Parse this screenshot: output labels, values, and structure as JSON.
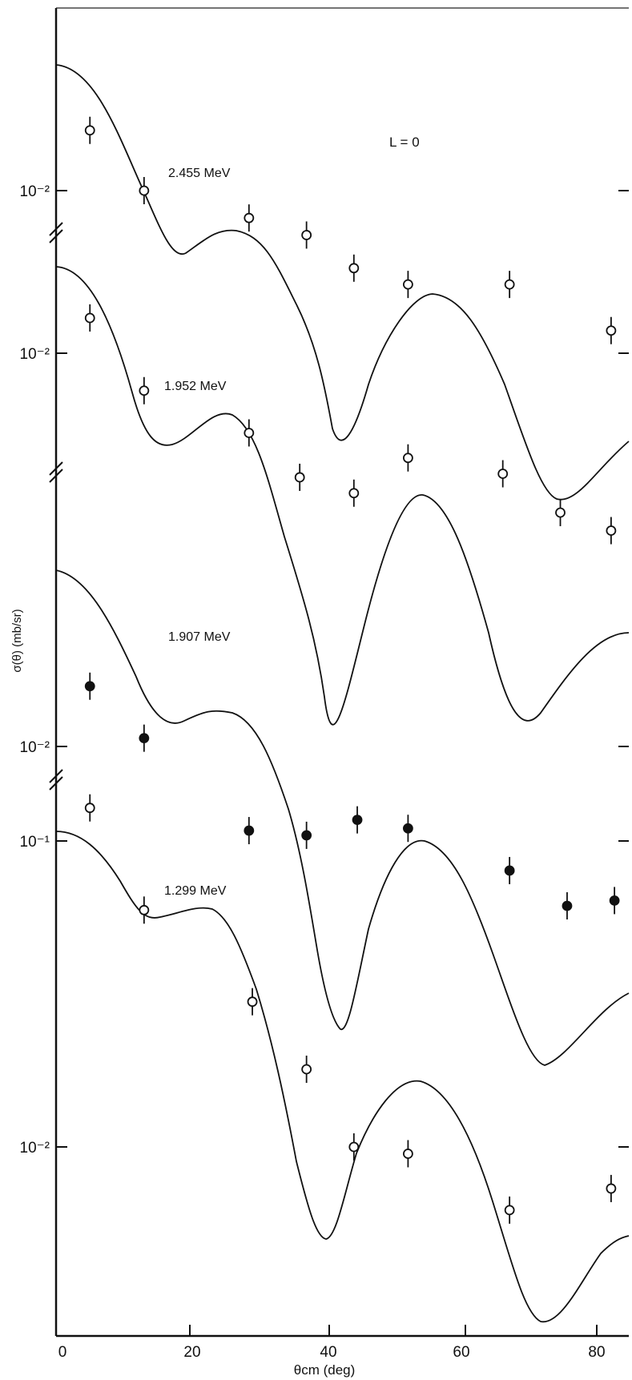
{
  "chart_data": {
    "type": "line",
    "title": "L = 0",
    "xlabel": "θcm (deg)",
    "ylabel": "σ(θ) (mb/sr)",
    "xlim": [
      0,
      85
    ],
    "x_ticks": [
      "0",
      "20",
      "40",
      "60",
      "80"
    ],
    "grid": false,
    "legend": "none",
    "y_tick_labels": [
      "10⁻²",
      "10⁻²",
      "10⁻²",
      "10⁻¹",
      "10⁻²"
    ],
    "series": [
      {
        "name": "2.455 MeV",
        "marker": "open",
        "points": [
          [
            5,
            0.02
          ],
          [
            13,
            0.01
          ],
          [
            28.5,
            0.0073
          ],
          [
            37,
            0.006
          ],
          [
            44,
            0.0041
          ],
          [
            52,
            0.0034
          ],
          [
            67,
            0.0034
          ],
          [
            82,
            0.002
          ]
        ]
      },
      {
        "name": "1.952 MeV",
        "marker": "open",
        "points": [
          [
            5,
            0.015
          ],
          [
            13,
            0.0065
          ],
          [
            28.5,
            0.004
          ],
          [
            36,
            0.0024
          ],
          [
            44,
            0.002
          ],
          [
            52,
            0.003
          ],
          [
            66,
            0.0025
          ],
          [
            74.5,
            0.0016
          ],
          [
            82,
            0.0013
          ]
        ]
      },
      {
        "name": "1.907 MeV",
        "marker": "filled",
        "points": [
          [
            5,
            0.02
          ],
          [
            13,
            0.011
          ],
          [
            28.5,
            0.0038
          ],
          [
            37,
            0.0036
          ],
          [
            44.5,
            0.0043
          ],
          [
            52,
            0.0039
          ],
          [
            67,
            0.0024
          ],
          [
            75.5,
            0.0016
          ],
          [
            82.5,
            0.0017
          ]
        ]
      },
      {
        "name": "1.299 MeV",
        "marker": "open",
        "points": [
          [
            5,
            0.13
          ],
          [
            13,
            0.06
          ],
          [
            29,
            0.03
          ],
          [
            37,
            0.018
          ],
          [
            44,
            0.01
          ],
          [
            52,
            0.0095
          ],
          [
            67,
            0.0062
          ],
          [
            82,
            0.0073
          ]
        ]
      }
    ]
  }
}
